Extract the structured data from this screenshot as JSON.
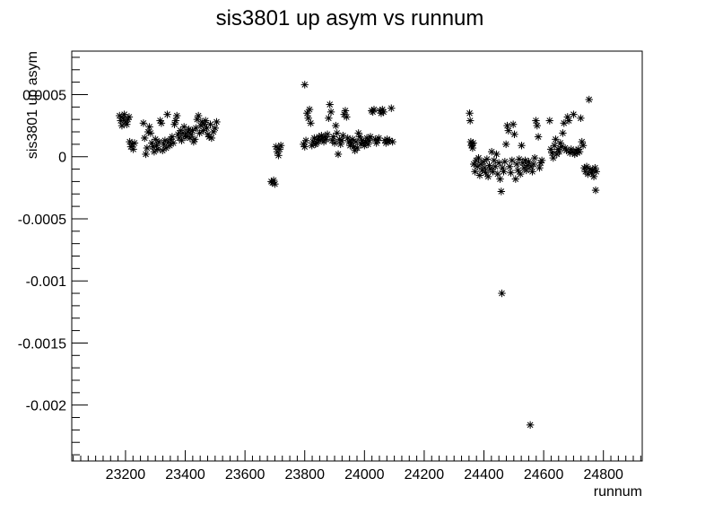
{
  "chart_data": {
    "type": "scatter",
    "title": "sis3801 up asym vs runnum",
    "xlabel": "runnum",
    "ylabel": "sis3801 up asym",
    "xlim": [
      23020,
      24930
    ],
    "ylim": [
      -0.00245,
      0.00085
    ],
    "x_ticks": [
      23200,
      23400,
      23600,
      23800,
      24000,
      24200,
      24400,
      24600,
      24800
    ],
    "x_tick_labels": [
      "23200",
      "23400",
      "23600",
      "23800",
      "24000",
      "24200",
      "24400",
      "24600",
      "24800"
    ],
    "y_ticks": [
      0.0005,
      0,
      -0.0005,
      -0.001,
      -0.0015,
      -0.002
    ],
    "y_tick_labels": [
      "0.0005",
      "0",
      "-0.0005",
      "-0.001",
      "-0.0015",
      "-0.002"
    ],
    "marker": "asterisk",
    "grid": false,
    "legend": "none",
    "series": [
      {
        "points": [
          [
            23180,
            0.00033
          ],
          [
            23184,
            0.00029
          ],
          [
            23188,
            0.00025
          ],
          [
            23192,
            0.00031
          ],
          [
            23196,
            0.00034
          ],
          [
            23200,
            0.00028
          ],
          [
            23204,
            0.00026
          ],
          [
            23208,
            0.0003
          ],
          [
            23212,
            0.00032
          ],
          [
            23214,
            0.00012
          ],
          [
            23218,
            8e-05
          ],
          [
            23222,
            0.0001
          ],
          [
            23226,
            6e-05
          ],
          [
            23230,
            0.00011
          ],
          [
            23260,
            0.00027
          ],
          [
            23264,
            0.00015
          ],
          [
            23268,
            2e-05
          ],
          [
            23272,
            7e-05
          ],
          [
            23276,
            0.0002
          ],
          [
            23280,
            0.00024
          ],
          [
            23284,
            0.00019
          ],
          [
            23288,
            0.00011
          ],
          [
            23292,
            8e-05
          ],
          [
            23296,
            4e-05
          ],
          [
            23300,
            0.00014
          ],
          [
            23304,
            9e-05
          ],
          [
            23308,
            6e-05
          ],
          [
            23312,
            0.00012
          ],
          [
            23316,
            0.00029
          ],
          [
            23320,
            0.00027
          ],
          [
            23324,
            5e-05
          ],
          [
            23328,
            0.0001
          ],
          [
            23332,
            0.00013
          ],
          [
            23336,
            7e-05
          ],
          [
            23340,
            0.00034
          ],
          [
            23344,
            0.00012
          ],
          [
            23348,
            9e-05
          ],
          [
            23352,
            0.00014
          ],
          [
            23356,
            0.00016
          ],
          [
            23360,
            0.00011
          ],
          [
            23364,
            0.00026
          ],
          [
            23368,
            0.00029
          ],
          [
            23372,
            0.00033
          ],
          [
            23376,
            0.00018
          ],
          [
            23380,
            0.00015
          ],
          [
            23384,
            0.00021
          ],
          [
            23388,
            0.00013
          ],
          [
            23392,
            0.00019
          ],
          [
            23396,
            0.00024
          ],
          [
            23400,
            0.00017
          ],
          [
            23404,
            0.00016
          ],
          [
            23408,
            0.0002
          ],
          [
            23412,
            0.00022
          ],
          [
            23416,
            0.00015
          ],
          [
            23420,
            0.00018
          ],
          [
            23424,
            0.00021
          ],
          [
            23428,
            0.00012
          ],
          [
            23432,
            0.00014
          ],
          [
            23436,
            0.00023
          ],
          [
            23440,
            0.0003
          ],
          [
            23444,
            0.00033
          ],
          [
            23448,
            0.00019
          ],
          [
            23452,
            0.00025
          ],
          [
            23456,
            0.00028
          ],
          [
            23460,
            0.00021
          ],
          [
            23464,
            0.00026
          ],
          [
            23468,
            0.00029
          ],
          [
            23472,
            0.00023
          ],
          [
            23476,
            0.00018
          ],
          [
            23480,
            0.00016
          ],
          [
            23484,
            0.00026
          ],
          [
            23488,
            0.00015
          ],
          [
            23494,
            0.0002
          ],
          [
            23500,
            0.00023
          ],
          [
            23505,
            0.00028
          ],
          [
            23688,
            -0.0002
          ],
          [
            23692,
            -0.00021
          ],
          [
            23696,
            -0.00019
          ],
          [
            23700,
            -0.00022
          ],
          [
            23704,
            8e-05
          ],
          [
            23708,
            4e-05
          ],
          [
            23712,
            1e-05
          ],
          [
            23716,
            6e-05
          ],
          [
            23720,
            9e-05
          ],
          [
            23800,
            0.00058
          ],
          [
            23796,
            0.0001
          ],
          [
            23800,
            8e-05
          ],
          [
            23804,
            0.00013
          ],
          [
            23808,
            0.00035
          ],
          [
            23812,
            0.00031
          ],
          [
            23816,
            0.00038
          ],
          [
            23820,
            0.00027
          ],
          [
            23824,
            9e-05
          ],
          [
            23828,
            0.00012
          ],
          [
            23832,
            0.00015
          ],
          [
            23836,
            0.0001
          ],
          [
            23840,
            0.00011
          ],
          [
            23844,
            0.00014
          ],
          [
            23848,
            0.00016
          ],
          [
            23852,
            0.00013
          ],
          [
            23856,
            0.00017
          ],
          [
            23860,
            0.00015
          ],
          [
            23864,
            0.00012
          ],
          [
            23868,
            0.00016
          ],
          [
            23872,
            0.00014
          ],
          [
            23876,
            0.00018
          ],
          [
            23880,
            0.00031
          ],
          [
            23884,
            0.00042
          ],
          [
            23888,
            0.00036
          ],
          [
            23892,
            0.00013
          ],
          [
            23896,
            0.00016
          ],
          [
            23900,
            0.00011
          ],
          [
            23904,
            0.00025
          ],
          [
            23908,
            0.00019
          ],
          [
            23912,
            2e-05
          ],
          [
            23916,
            0.00014
          ],
          [
            23920,
            0.0001
          ],
          [
            23924,
            0.00013
          ],
          [
            23928,
            0.00017
          ],
          [
            23932,
            0.00034
          ],
          [
            23936,
            0.00037
          ],
          [
            23940,
            0.00032
          ],
          [
            23944,
            0.00015
          ],
          [
            23948,
            0.00012
          ],
          [
            23952,
            9e-05
          ],
          [
            23956,
            0.00011
          ],
          [
            23960,
            0.00014
          ],
          [
            23964,
            8e-05
          ],
          [
            23968,
            5e-05
          ],
          [
            23972,
            0.00012
          ],
          [
            23976,
            7e-05
          ],
          [
            23980,
            0.00019
          ],
          [
            23984,
            0.00016
          ],
          [
            23988,
            0.0001
          ],
          [
            23992,
            0.00013
          ],
          [
            23996,
            0.00011
          ],
          [
            24000,
            9e-05
          ],
          [
            24004,
            0.00012
          ],
          [
            24008,
            0.00015
          ],
          [
            24012,
            0.0001
          ],
          [
            24016,
            0.00013
          ],
          [
            24020,
            0.00016
          ],
          [
            24024,
            0.00037
          ],
          [
            24028,
            0.00036
          ],
          [
            24032,
            0.00038
          ],
          [
            24036,
            0.00014
          ],
          [
            24040,
            0.00011
          ],
          [
            24044,
            0.00013
          ],
          [
            24048,
            0.00015
          ],
          [
            24052,
            0.00037
          ],
          [
            24056,
            0.00035
          ],
          [
            24060,
            0.00038
          ],
          [
            24064,
            0.00036
          ],
          [
            24068,
            0.00013
          ],
          [
            24072,
            0.00011
          ],
          [
            24076,
            0.00014
          ],
          [
            24080,
            0.00012
          ],
          [
            24084,
            0.00013
          ],
          [
            24090,
            0.00039
          ],
          [
            24094,
            0.00012
          ],
          [
            24352,
            0.00035
          ],
          [
            24354,
            0.00029
          ],
          [
            24356,
            0.00012
          ],
          [
            24358,
            9e-05
          ],
          [
            24360,
            0.0001
          ],
          [
            24362,
            7e-05
          ],
          [
            24364,
            0.00011
          ],
          [
            24366,
            -6e-05
          ],
          [
            24370,
            -0.00012
          ],
          [
            24374,
            -3e-05
          ],
          [
            24378,
            -8e-05
          ],
          [
            24382,
            -1e-05
          ],
          [
            24386,
            -0.00015
          ],
          [
            24390,
            -6e-05
          ],
          [
            24394,
            -0.00011
          ],
          [
            24398,
            -4e-05
          ],
          [
            24402,
            -9e-05
          ],
          [
            24406,
            -0.00013
          ],
          [
            24410,
            -2e-05
          ],
          [
            24414,
            -0.00016
          ],
          [
            24418,
            -7e-05
          ],
          [
            24422,
            -0.0001
          ],
          [
            24426,
            4e-05
          ],
          [
            24430,
            -0.00012
          ],
          [
            24434,
            -3e-05
          ],
          [
            24438,
            -8e-05
          ],
          [
            24442,
            2e-05
          ],
          [
            24446,
            -0.00014
          ],
          [
            24450,
            -5e-05
          ],
          [
            24454,
            -0.00018
          ],
          [
            24458,
            -0.00028
          ],
          [
            24460,
            -0.0011
          ],
          [
            24462,
            -9e-05
          ],
          [
            24466,
            -0.00012
          ],
          [
            24470,
            -4e-05
          ],
          [
            24474,
            0.0001
          ],
          [
            24478,
            0.00025
          ],
          [
            24482,
            0.00021
          ],
          [
            24486,
            -8e-05
          ],
          [
            24490,
            -0.00013
          ],
          [
            24494,
            -3e-05
          ],
          [
            24498,
            0.00026
          ],
          [
            24502,
            0.00018
          ],
          [
            24506,
            -0.00018
          ],
          [
            24510,
            -6e-05
          ],
          [
            24514,
            -0.00011
          ],
          [
            24518,
            -2e-05
          ],
          [
            24522,
            -0.00014
          ],
          [
            24526,
            9e-05
          ],
          [
            24530,
            -5e-05
          ],
          [
            24534,
            -9e-05
          ],
          [
            24538,
            -3e-05
          ],
          [
            24542,
            -0.00011
          ],
          [
            24546,
            -7e-05
          ],
          [
            24550,
            -4e-05
          ],
          [
            24555,
            -0.00216
          ],
          [
            24558,
            -8e-05
          ],
          [
            24562,
            -0.00012
          ],
          [
            24566,
            -6e-05
          ],
          [
            24570,
            -1e-05
          ],
          [
            24574,
            0.00029
          ],
          [
            24578,
            0.00025
          ],
          [
            24582,
            0.00016
          ],
          [
            24586,
            -9e-05
          ],
          [
            24590,
            -5e-05
          ],
          [
            24594,
            -3e-05
          ],
          [
            24620,
            0.00029
          ],
          [
            24624,
            6e-05
          ],
          [
            24628,
            3e-05
          ],
          [
            24632,
            -1e-05
          ],
          [
            24636,
            9e-05
          ],
          [
            24640,
            0.00014
          ],
          [
            24644,
            2e-05
          ],
          [
            24648,
            6e-05
          ],
          [
            24652,
            4e-05
          ],
          [
            24656,
            0.00011
          ],
          [
            24660,
            8e-05
          ],
          [
            24664,
            0.00019
          ],
          [
            24668,
            0.00027
          ],
          [
            24672,
            7e-05
          ],
          [
            24676,
            5e-05
          ],
          [
            24680,
            0.00032
          ],
          [
            24684,
            0.00029
          ],
          [
            24688,
            3e-05
          ],
          [
            24692,
            6e-05
          ],
          [
            24696,
            4e-05
          ],
          [
            24700,
            0.00034
          ],
          [
            24704,
            2e-05
          ],
          [
            24708,
            5e-05
          ],
          [
            24712,
            3e-05
          ],
          [
            24716,
            6e-05
          ],
          [
            24720,
            4e-05
          ],
          [
            24724,
            0.00031
          ],
          [
            24728,
            0.00012
          ],
          [
            24732,
            9e-05
          ],
          [
            24736,
            -9e-05
          ],
          [
            24740,
            -0.00012
          ],
          [
            24744,
            -8e-05
          ],
          [
            24748,
            -0.00014
          ],
          [
            24752,
            0.00046
          ],
          [
            24756,
            -0.0001
          ],
          [
            24760,
            -0.00013
          ],
          [
            24764,
            -0.00011
          ],
          [
            24768,
            -0.00016
          ],
          [
            24772,
            -9e-05
          ],
          [
            24774,
            -0.00027
          ],
          [
            24776,
            -0.00012
          ]
        ]
      }
    ]
  }
}
